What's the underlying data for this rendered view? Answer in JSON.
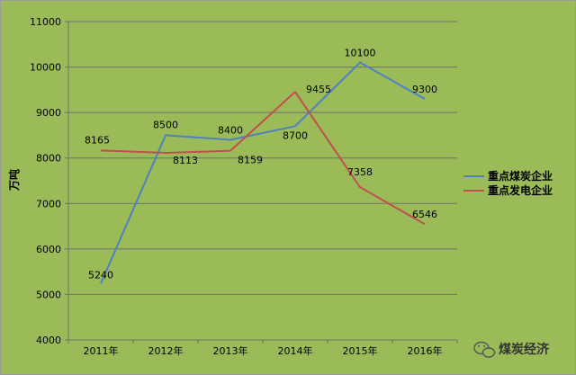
{
  "chart_data": {
    "type": "line",
    "categories": [
      "2011年",
      "2012年",
      "2013年",
      "2014年",
      "2015年",
      "2016年"
    ],
    "series": [
      {
        "name": "重点煤炭企业",
        "values": [
          5240,
          8500,
          8400,
          8700,
          10100,
          9300
        ],
        "color": "#4f81bd"
      },
      {
        "name": "重点发电企业",
        "values": [
          8165,
          8113,
          8159,
          9455,
          7358,
          6546
        ],
        "color": "#c0504d"
      }
    ],
    "data_labels": {
      "coal": [
        "5240",
        "8500",
        "8400",
        "8700",
        "10100",
        "9300"
      ],
      "power": [
        "8165",
        "8113",
        "8159",
        "9455",
        "7358",
        "6546"
      ]
    },
    "ylabel": "万吨",
    "ylim": [
      4000,
      11000
    ],
    "yticks": [
      "4000",
      "5000",
      "6000",
      "7000",
      "8000",
      "9000",
      "10000",
      "11000"
    ],
    "grid": true,
    "legend_position": "right",
    "plot_background": "#9bbb59"
  },
  "watermark": {
    "text": "煤炭经济",
    "icon": "wechat-icon"
  }
}
